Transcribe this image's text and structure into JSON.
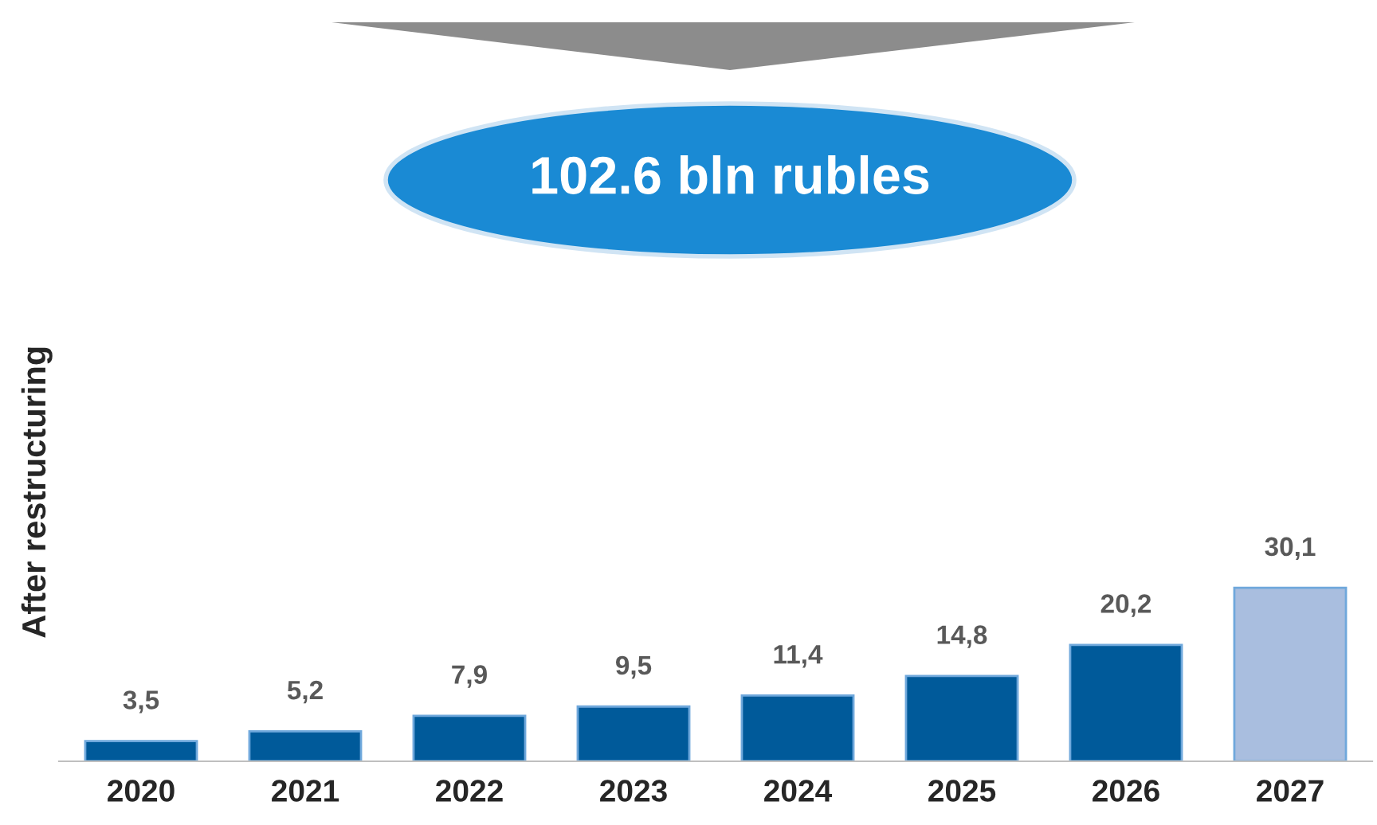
{
  "chart_data": {
    "type": "bar",
    "ylabel": "After restructuring",
    "annotations": [
      "102.6 bln rubles"
    ],
    "categories": [
      "2020",
      "2021",
      "2022",
      "2023",
      "2024",
      "2025",
      "2026",
      "2027"
    ],
    "values": [
      3.5,
      5.2,
      7.9,
      9.5,
      11.4,
      14.8,
      20.2,
      30.1
    ],
    "value_labels": [
      "3,5",
      "5,2",
      "7,9",
      "9,5",
      "11,4",
      "14,8",
      "20,2",
      "30,1"
    ],
    "colors": [
      "#005a9a",
      "#005a9a",
      "#005a9a",
      "#005a9a",
      "#005a9a",
      "#005a9a",
      "#005a9a",
      "#a9bedf"
    ],
    "grid": false,
    "legend": false
  }
}
